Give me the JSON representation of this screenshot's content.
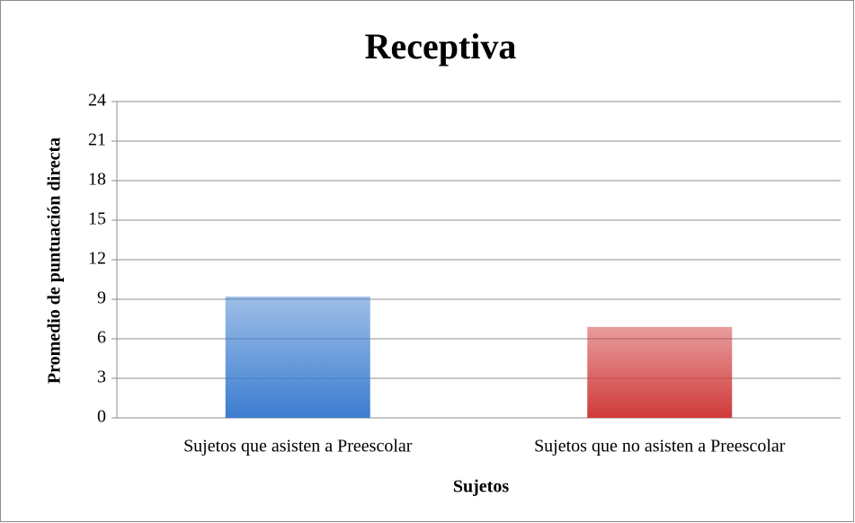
{
  "chart_data": {
    "type": "bar",
    "title": "Receptiva",
    "x_label": "Sujetos",
    "y_label": "Promedio de puntuación directa",
    "categories": [
      "Sujetos que asisten a Preescolar",
      "Sujetos que no asisten a Preescolar"
    ],
    "values": [
      9.2,
      6.9
    ],
    "colors": [
      "#3c7dd0",
      "#d03a3a"
    ],
    "ylim": [
      0,
      24
    ],
    "yticks": [
      0,
      3,
      6,
      9,
      12,
      15,
      18,
      21,
      24
    ],
    "grid": true
  }
}
